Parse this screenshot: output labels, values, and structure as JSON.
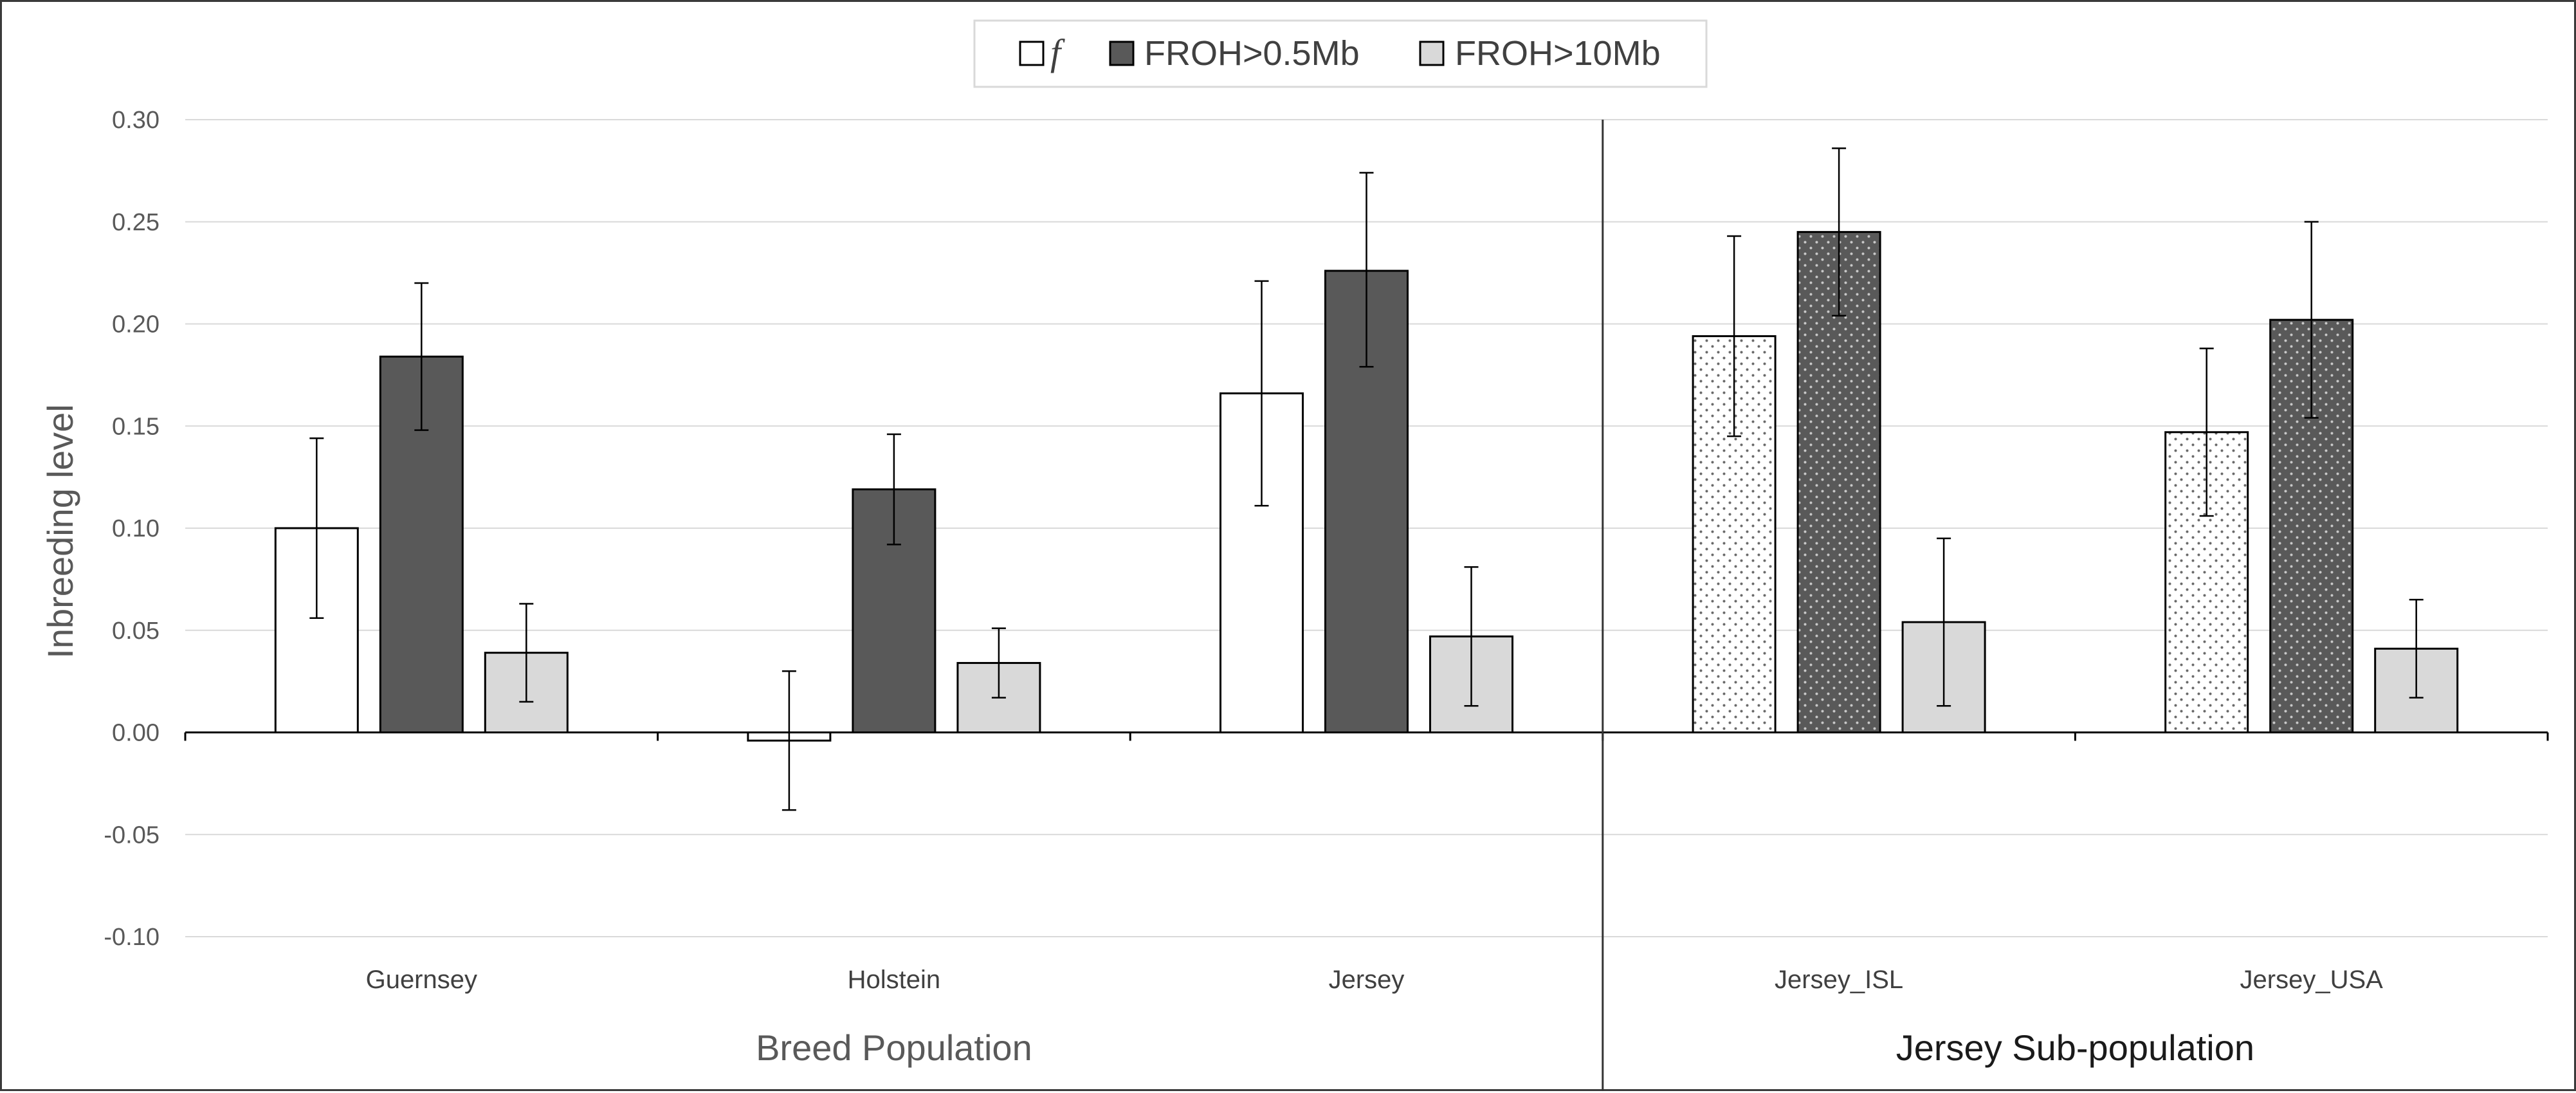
{
  "chart_data": {
    "type": "bar",
    "title": "",
    "xlabel": "",
    "ylabel": "Inbreeding level",
    "ylim": [
      -0.1,
      0.3
    ],
    "yticks": [
      "0.30",
      "0.25",
      "0.20",
      "0.15",
      "0.10",
      "0.05",
      "0.00",
      "-0.05",
      "-0.10"
    ],
    "grid": true,
    "legend_position": "top-center",
    "categories": [
      "Guernsey",
      "Holstein",
      "Jersey",
      "Jersey_ISL",
      "Jersey_USA"
    ],
    "group_labels": [
      {
        "label": "Breed Population",
        "categories": [
          "Guernsey",
          "Holstein",
          "Jersey"
        ]
      },
      {
        "label": "Jersey Sub-population",
        "categories": [
          "Jersey_ISL",
          "Jersey_USA"
        ]
      }
    ],
    "series": [
      {
        "name": "f",
        "values": [
          0.1,
          -0.004,
          0.166,
          0.194,
          0.147
        ],
        "error_low": [
          0.056,
          -0.038,
          0.111,
          0.145,
          0.106
        ],
        "error_high": [
          0.144,
          0.03,
          0.221,
          0.243,
          0.188
        ],
        "color": "#ffffff"
      },
      {
        "name": "FROH>0.5Mb",
        "values": [
          0.184,
          0.119,
          0.226,
          0.245,
          0.202
        ],
        "error_low": [
          0.148,
          0.092,
          0.179,
          0.204,
          0.154
        ],
        "error_high": [
          0.22,
          0.146,
          0.274,
          0.286,
          0.25
        ],
        "color": "#595959"
      },
      {
        "name": "FROH>10Mb",
        "values": [
          0.039,
          0.034,
          0.047,
          0.054,
          0.041
        ],
        "error_low": [
          0.015,
          0.017,
          0.013,
          0.013,
          0.017
        ],
        "error_high": [
          0.063,
          0.051,
          0.081,
          0.095,
          0.065
        ],
        "color": "#d9d9d9"
      }
    ],
    "dotted_categories": [
      "Jersey_ISL",
      "Jersey_USA"
    ]
  }
}
